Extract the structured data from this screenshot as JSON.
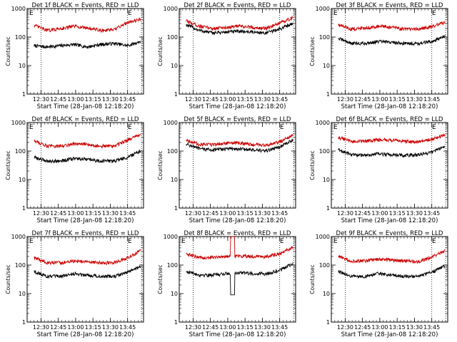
{
  "chart_data": [
    {
      "type": "line",
      "title": "Det 1f BLACK = Events, RED = LLD",
      "xlabel": "Start Time (28-Jan-08 12:18:20)",
      "ylabel": "Counts/sec",
      "yscale": "log",
      "ylim": [
        1,
        1000
      ],
      "xlim": [
        12.3,
        13.98
      ],
      "xticklabels": [
        "12:30",
        "12:45",
        "13:00",
        "13:15",
        "13:30",
        "13:45"
      ],
      "yticklabels": [
        "1",
        "10",
        "100",
        "1000"
      ],
      "vlines": [
        12.5,
        13.75,
        13.95
      ],
      "corner_labels": [
        "E",
        "E"
      ],
      "series": [
        {
          "name": "Events",
          "color": "#000000",
          "values": [
            50,
            45,
            50,
            55,
            45,
            55,
            60,
            50,
            70
          ]
        },
        {
          "name": "LLD",
          "color": "#cc0000",
          "values": [
            260,
            170,
            200,
            240,
            210,
            170,
            180,
            330,
            420
          ]
        }
      ]
    },
    {
      "type": "line",
      "title": "Det 2f BLACK = Events, RED = LLD",
      "xlabel": "Start Time (28-Jan-08 12:18:20)",
      "ylabel": "Counts/sec",
      "yscale": "log",
      "ylim": [
        1,
        1000
      ],
      "xlim": [
        12.3,
        13.98
      ],
      "xticklabels": [
        "12:30",
        "12:45",
        "13:00",
        "13:15",
        "13:30",
        "13:45"
      ],
      "yticklabels": [
        "1",
        "10",
        "100",
        "1000"
      ],
      "vlines": [
        12.5,
        13.75,
        13.95
      ],
      "corner_labels": [
        "",
        ""
      ],
      "series": [
        {
          "name": "Events",
          "color": "#000000",
          "values": [
            270,
            170,
            140,
            150,
            160,
            150,
            140,
            190,
            310
          ]
        },
        {
          "name": "LLD",
          "color": "#cc0000",
          "values": [
            370,
            240,
            200,
            220,
            240,
            220,
            200,
            300,
            480
          ]
        }
      ]
    },
    {
      "type": "line",
      "title": "Det 3f BLACK = Events, RED = LLD",
      "xlabel": "Start Time (28-Jan-08 12:18:20)",
      "ylabel": "Counts/sec",
      "yscale": "log",
      "ylim": [
        1,
        1000
      ],
      "xlim": [
        12.3,
        13.98
      ],
      "xticklabels": [
        "12:30",
        "12:45",
        "13:00",
        "13:15",
        "13:30",
        "13:45"
      ],
      "yticklabels": [
        "1",
        "10",
        "100",
        "1000"
      ],
      "vlines": [
        12.5,
        13.75,
        13.95
      ],
      "corner_labels": [
        "E",
        "E"
      ],
      "series": [
        {
          "name": "Events",
          "color": "#000000",
          "values": [
            90,
            60,
            60,
            70,
            65,
            60,
            60,
            70,
            105
          ]
        },
        {
          "name": "LLD",
          "color": "#cc0000",
          "values": [
            270,
            190,
            210,
            240,
            220,
            190,
            190,
            230,
            330
          ]
        }
      ]
    },
    {
      "type": "line",
      "title": "Det 4f BLACK = Events, RED = LLD",
      "xlabel": "Start Time (28-Jan-08 12:18:20)",
      "ylabel": "Counts/sec",
      "yscale": "log",
      "ylim": [
        1,
        1000
      ],
      "xlim": [
        12.3,
        13.98
      ],
      "xticklabels": [
        "12:30",
        "12:45",
        "13:00",
        "13:15",
        "13:30",
        "13:45"
      ],
      "yticklabels": [
        "1",
        "10",
        "100",
        "1000"
      ],
      "vlines": [
        12.5,
        13.75,
        13.95
      ],
      "corner_labels": [
        "E",
        "E"
      ],
      "series": [
        {
          "name": "Events",
          "color": "#000000",
          "values": [
            60,
            45,
            45,
            55,
            50,
            45,
            45,
            60,
            105
          ]
        },
        {
          "name": "LLD",
          "color": "#cc0000",
          "values": [
            230,
            150,
            150,
            180,
            170,
            150,
            150,
            240,
            390
          ]
        }
      ]
    },
    {
      "type": "line",
      "title": "Det 5f BLACK = Events, RED = LLD",
      "xlabel": "Start Time (28-Jan-08 12:18:20)",
      "ylabel": "Counts/sec",
      "yscale": "log",
      "ylim": [
        1,
        1000
      ],
      "xlim": [
        12.3,
        13.98
      ],
      "xticklabels": [
        "12:30",
        "12:45",
        "13:00",
        "13:15",
        "13:30",
        "13:45"
      ],
      "yticklabels": [
        "1",
        "10",
        "100",
        "1000"
      ],
      "vlines": [
        12.5,
        13.75,
        13.95
      ],
      "corner_labels": [
        "",
        "E"
      ],
      "series": [
        {
          "name": "Events",
          "color": "#000000",
          "values": [
            180,
            120,
            110,
            120,
            120,
            110,
            100,
            140,
            240
          ]
        },
        {
          "name": "LLD",
          "color": "#cc0000",
          "values": [
            250,
            170,
            170,
            190,
            190,
            170,
            160,
            210,
            360
          ]
        }
      ]
    },
    {
      "type": "line",
      "title": "Det 6f BLACK = Events, RED = LLD",
      "xlabel": "Start Time (28-Jan-08 12:18:20)",
      "ylabel": "Counts/sec",
      "yscale": "log",
      "ylim": [
        1,
        1000
      ],
      "xlim": [
        12.3,
        13.98
      ],
      "xticklabels": [
        "12:30",
        "12:45",
        "13:00",
        "13:15",
        "13:30",
        "13:45"
      ],
      "yticklabels": [
        "1",
        "10",
        "100",
        "1000"
      ],
      "vlines": [
        12.5,
        13.75,
        13.95
      ],
      "corner_labels": [
        "E",
        "E"
      ],
      "series": [
        {
          "name": "Events",
          "color": "#000000",
          "values": [
            110,
            75,
            70,
            80,
            75,
            70,
            75,
            90,
            150
          ]
        },
        {
          "name": "LLD",
          "color": "#cc0000",
          "values": [
            300,
            220,
            220,
            250,
            240,
            220,
            210,
            260,
            380
          ]
        }
      ]
    },
    {
      "type": "line",
      "title": "Det 7f BLACK = Events, RED = LLD",
      "xlabel": "Start Time (28-Jan-08 12:18:20)",
      "ylabel": "Counts/sec",
      "yscale": "log",
      "ylim": [
        1,
        1000
      ],
      "xlim": [
        12.3,
        13.98
      ],
      "xticklabels": [
        "12:30",
        "12:45",
        "13:00",
        "13:15",
        "13:30",
        "13:45"
      ],
      "yticklabels": [
        "1",
        "10",
        "100",
        "1000"
      ],
      "vlines": [
        12.5,
        13.75,
        13.95
      ],
      "corner_labels": [
        "E",
        "E"
      ],
      "series": [
        {
          "name": "Events",
          "color": "#000000",
          "values": [
            60,
            40,
            40,
            50,
            45,
            40,
            40,
            55,
            90
          ]
        },
        {
          "name": "LLD",
          "color": "#cc0000",
          "values": [
            180,
            120,
            120,
            140,
            130,
            120,
            120,
            180,
            320
          ]
        }
      ]
    },
    {
      "type": "line",
      "title": "Det 8f BLACK = Events, RED = LLD",
      "xlabel": "Start Time (28-Jan-08 12:18:20)",
      "ylabel": "Counts/sec",
      "yscale": "log",
      "ylim": [
        1,
        1000
      ],
      "xlim": [
        12.3,
        13.98
      ],
      "xticklabels": [
        "12:30",
        "12:45",
        "13:00",
        "13:15",
        "13:30",
        "13:45"
      ],
      "yticklabels": [
        "1",
        "10",
        "100",
        "1000"
      ],
      "vlines": [
        12.5,
        13.75,
        13.95
      ],
      "corner_labels": [
        "E",
        "E"
      ],
      "series": [
        {
          "name": "Events",
          "color": "#000000",
          "values": [
            60,
            45,
            45,
            50,
            55,
            50,
            50,
            65,
            110
          ]
        },
        {
          "name": "LLD",
          "color": "#cc0000",
          "values": [
            250,
            180,
            190,
            200,
            210,
            200,
            200,
            250,
            420
          ]
        }
      ]
    },
    {
      "type": "line",
      "title": "Det 9f BLACK = Events, RED = LLD",
      "xlabel": "Start Time (28-Jan-08 12:18:20)",
      "ylabel": "Counts/sec",
      "yscale": "log",
      "ylim": [
        1,
        1000
      ],
      "xlim": [
        12.3,
        13.98
      ],
      "xticklabels": [
        "12:30",
        "12:45",
        "13:00",
        "13:15",
        "13:30",
        "13:45"
      ],
      "yticklabels": [
        "1",
        "10",
        "100",
        "1000"
      ],
      "vlines": [
        12.5,
        13.75,
        13.95
      ],
      "corner_labels": [
        "E",
        "E"
      ],
      "series": [
        {
          "name": "Events",
          "color": "#000000",
          "values": [
            60,
            40,
            40,
            50,
            45,
            40,
            40,
            55,
            95
          ]
        },
        {
          "name": "LLD",
          "color": "#cc0000",
          "values": [
            200,
            140,
            140,
            160,
            150,
            140,
            130,
            190,
            330
          ]
        }
      ]
    }
  ]
}
